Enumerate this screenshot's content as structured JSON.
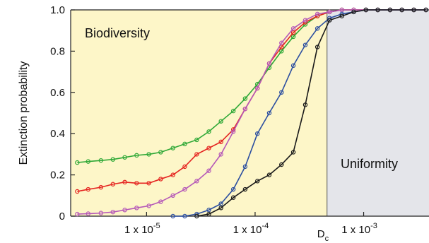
{
  "chart_data": {
    "type": "line",
    "x_scale": "log",
    "xlim": [
      2e-06,
      0.004
    ],
    "ylim": [
      0,
      1.0
    ],
    "grid": false,
    "ylabel": "Extinction probability",
    "y_ticks": [
      0,
      0.2,
      0.4,
      0.6,
      0.8,
      1.0
    ],
    "y_tick_labels": [
      "0",
      "0.2",
      "0.4",
      "0.6",
      "0.8",
      "1.0"
    ],
    "x_ticks": [
      {
        "value": 1e-05,
        "mantissa": "1 x 10",
        "exponent": "-5"
      },
      {
        "value": 0.0001,
        "mantissa": "1 x 10",
        "exponent": "-4"
      },
      {
        "value": 0.001,
        "mantissa": "1 x 10",
        "exponent": "-3"
      }
    ],
    "critical_marker": {
      "value": 0.00046,
      "label": "D",
      "subscript": "c"
    },
    "regions": [
      {
        "name": "Biodiversity",
        "from": 2e-06,
        "to": 0.00046,
        "color": "#fdf6c8"
      },
      {
        "name": "Uniformity",
        "from": 0.00046,
        "to": 0.004,
        "color": "#e4e5ea"
      }
    ],
    "x": [
      2.3e-06,
      2.9e-06,
      3.8e-06,
      4.9e-06,
      6.3e-06,
      8.1e-06,
      1.05e-05,
      1.35e-05,
      1.75e-05,
      2.25e-05,
      2.9e-05,
      3.75e-05,
      4.85e-05,
      6.3e-05,
      8.1e-05,
      0.000105,
      0.000135,
      0.000175,
      0.000225,
      0.00029,
      0.000375,
      0.000485,
      0.00063,
      0.00081,
      0.00105,
      0.00135,
      0.00175,
      0.00225,
      0.0029,
      0.00375
    ],
    "series": [
      {
        "color": "#2ea836",
        "values": [
          0.26,
          0.265,
          0.27,
          0.275,
          0.285,
          0.295,
          0.3,
          0.31,
          0.33,
          0.35,
          0.37,
          0.41,
          0.46,
          0.51,
          0.57,
          0.64,
          0.72,
          0.8,
          0.87,
          0.93,
          0.97,
          0.99,
          1.0,
          1.0,
          1.0,
          1.0,
          1.0,
          1.0,
          1.0,
          1.0
        ]
      },
      {
        "color": "#e52420",
        "values": [
          0.12,
          0.13,
          0.14,
          0.155,
          0.165,
          0.16,
          0.16,
          0.18,
          0.2,
          0.24,
          0.3,
          0.33,
          0.36,
          0.42,
          0.52,
          0.62,
          0.74,
          0.82,
          0.89,
          0.94,
          0.97,
          0.99,
          1.0,
          1.0,
          1.0,
          1.0,
          1.0,
          1.0,
          1.0,
          1.0
        ]
      },
      {
        "color": "#b558b8",
        "values": [
          0.01,
          0.012,
          0.015,
          0.02,
          0.03,
          0.04,
          0.05,
          0.07,
          0.1,
          0.13,
          0.17,
          0.22,
          0.3,
          0.41,
          0.52,
          0.62,
          0.74,
          0.84,
          0.91,
          0.95,
          0.98,
          0.99,
          1.0,
          1.0,
          1.0,
          1.0,
          1.0,
          1.0,
          1.0,
          1.0
        ]
      },
      {
        "color": "#2b4ea0",
        "values": [
          null,
          null,
          null,
          null,
          null,
          null,
          null,
          null,
          0.0,
          0.0,
          0.01,
          0.03,
          0.06,
          0.13,
          0.24,
          0.4,
          0.5,
          0.6,
          0.73,
          0.83,
          0.91,
          0.96,
          0.98,
          0.99,
          1.0,
          1.0,
          1.0,
          1.0,
          1.0,
          1.0
        ]
      },
      {
        "color": "#1a1a1a",
        "values": [
          null,
          null,
          null,
          null,
          null,
          null,
          null,
          null,
          null,
          null,
          0.0,
          0.01,
          0.04,
          0.09,
          0.13,
          0.17,
          0.2,
          0.25,
          0.31,
          0.54,
          0.82,
          0.95,
          0.97,
          0.99,
          1.0,
          1.0,
          1.0,
          1.0,
          1.0,
          1.0
        ]
      }
    ]
  }
}
